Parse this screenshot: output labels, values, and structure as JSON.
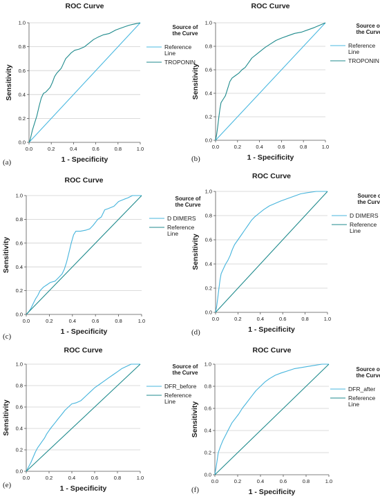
{
  "colors": {
    "reference": "#49b8e0",
    "curve_light": "#45b4dc",
    "curve_teal": "#1e8a8c",
    "grid": "#cfcfcf",
    "axis": "#555555"
  },
  "chart_data": [
    {
      "panel_letter": "(a)",
      "type": "line",
      "title": "ROC Curve",
      "xlabel": "1 - Specificity",
      "ylabel": "Sensitivity",
      "xlim": [
        0,
        1
      ],
      "ylim": [
        0,
        1
      ],
      "xticks": [
        "0.0",
        "0.2",
        "0.4",
        "0.6",
        "0.8",
        "1.0"
      ],
      "yticks": [
        "0.0",
        "0.2",
        "0.4",
        "0.6",
        "0.8",
        "1.0"
      ],
      "grid": "horizontal",
      "legend": {
        "title": "Source of the Curve",
        "placement": "right"
      },
      "series": [
        {
          "name": "Reference Line",
          "color": "#49b8e0",
          "points": [
            [
              0,
              0
            ],
            [
              1,
              1
            ]
          ]
        },
        {
          "name": "TROPONIN",
          "color": "#1e8a8c",
          "points": [
            [
              0,
              0
            ],
            [
              0.01,
              0.02
            ],
            [
              0.02,
              0.06
            ],
            [
              0.03,
              0.1
            ],
            [
              0.05,
              0.16
            ],
            [
              0.07,
              0.22
            ],
            [
              0.09,
              0.3
            ],
            [
              0.11,
              0.37
            ],
            [
              0.13,
              0.41
            ],
            [
              0.15,
              0.42
            ],
            [
              0.17,
              0.44
            ],
            [
              0.19,
              0.46
            ],
            [
              0.21,
              0.5
            ],
            [
              0.23,
              0.55
            ],
            [
              0.25,
              0.58
            ],
            [
              0.27,
              0.6
            ],
            [
              0.29,
              0.62
            ],
            [
              0.31,
              0.66
            ],
            [
              0.33,
              0.7
            ],
            [
              0.36,
              0.73
            ],
            [
              0.38,
              0.75
            ],
            [
              0.41,
              0.77
            ],
            [
              0.45,
              0.78
            ],
            [
              0.5,
              0.8
            ],
            [
              0.54,
              0.83
            ],
            [
              0.58,
              0.86
            ],
            [
              0.62,
              0.88
            ],
            [
              0.67,
              0.9
            ],
            [
              0.72,
              0.91
            ],
            [
              0.78,
              0.94
            ],
            [
              0.84,
              0.96
            ],
            [
              0.9,
              0.98
            ],
            [
              0.95,
              0.99
            ],
            [
              1,
              1
            ]
          ]
        }
      ]
    },
    {
      "panel_letter": "(b)",
      "type": "line",
      "title": "ROC Curve",
      "xlabel": "1 - Specificity",
      "ylabel": "Sensitivity",
      "xlim": [
        0,
        1
      ],
      "ylim": [
        0,
        1
      ],
      "xticks": [
        "0.0",
        "0.2",
        "0.4",
        "0.6",
        "0.8",
        "1.0"
      ],
      "yticks": [
        "0.0",
        "0.2",
        "0.4",
        "0.6",
        "0.8",
        "1.0"
      ],
      "grid": "horizontal",
      "legend": {
        "title": "Source of the Curve",
        "placement": "right"
      },
      "series": [
        {
          "name": "Reference Line",
          "color": "#49b8e0",
          "points": [
            [
              0,
              0
            ],
            [
              1,
              1
            ]
          ]
        },
        {
          "name": "TROPONIN",
          "color": "#1e8a8c",
          "points": [
            [
              0,
              0
            ],
            [
              0.01,
              0.05
            ],
            [
              0.02,
              0.12
            ],
            [
              0.03,
              0.2
            ],
            [
              0.04,
              0.27
            ],
            [
              0.05,
              0.32
            ],
            [
              0.07,
              0.35
            ],
            [
              0.09,
              0.38
            ],
            [
              0.11,
              0.44
            ],
            [
              0.13,
              0.5
            ],
            [
              0.15,
              0.53
            ],
            [
              0.18,
              0.55
            ],
            [
              0.21,
              0.57
            ],
            [
              0.24,
              0.6
            ],
            [
              0.27,
              0.62
            ],
            [
              0.3,
              0.66
            ],
            [
              0.33,
              0.7
            ],
            [
              0.37,
              0.73
            ],
            [
              0.41,
              0.76
            ],
            [
              0.45,
              0.79
            ],
            [
              0.5,
              0.82
            ],
            [
              0.55,
              0.85
            ],
            [
              0.6,
              0.87
            ],
            [
              0.66,
              0.89
            ],
            [
              0.72,
              0.91
            ],
            [
              0.78,
              0.92
            ],
            [
              0.84,
              0.94
            ],
            [
              0.9,
              0.96
            ],
            [
              0.95,
              0.98
            ],
            [
              1,
              1
            ]
          ]
        }
      ]
    },
    {
      "panel_letter": "(c)",
      "type": "line",
      "title": "ROC Curve",
      "xlabel": "1 - Specificity",
      "ylabel": "Sensitivity",
      "xlim": [
        0,
        1
      ],
      "ylim": [
        0,
        1
      ],
      "xticks": [
        "0.0",
        "0.2",
        "0.4",
        "0.6",
        "0.8",
        "1.0"
      ],
      "yticks": [
        "0.0",
        "0.2",
        "0.4",
        "0.6",
        "0.8",
        "1.0"
      ],
      "grid": "horizontal",
      "legend": {
        "title": "Source of the Curve",
        "placement": "right"
      },
      "series": [
        {
          "name": "D DIMERS",
          "color": "#45b4dc",
          "points": [
            [
              0,
              0
            ],
            [
              0.02,
              0.02
            ],
            [
              0.04,
              0.05
            ],
            [
              0.06,
              0.09
            ],
            [
              0.08,
              0.13
            ],
            [
              0.1,
              0.16
            ],
            [
              0.12,
              0.2
            ],
            [
              0.15,
              0.23
            ],
            [
              0.18,
              0.25
            ],
            [
              0.21,
              0.27
            ],
            [
              0.25,
              0.28
            ],
            [
              0.28,
              0.31
            ],
            [
              0.31,
              0.34
            ],
            [
              0.33,
              0.38
            ],
            [
              0.35,
              0.44
            ],
            [
              0.37,
              0.52
            ],
            [
              0.39,
              0.6
            ],
            [
              0.41,
              0.67
            ],
            [
              0.43,
              0.7
            ],
            [
              0.47,
              0.7
            ],
            [
              0.52,
              0.71
            ],
            [
              0.55,
              0.72
            ],
            [
              0.58,
              0.75
            ],
            [
              0.62,
              0.8
            ],
            [
              0.65,
              0.82
            ],
            [
              0.68,
              0.88
            ],
            [
              0.71,
              0.89
            ],
            [
              0.76,
              0.91
            ],
            [
              0.8,
              0.95
            ],
            [
              0.85,
              0.97
            ],
            [
              0.88,
              0.98
            ],
            [
              0.92,
              1
            ],
            [
              1,
              1
            ]
          ]
        },
        {
          "name": "Reference Line",
          "color": "#1e8a8c",
          "points": [
            [
              0,
              0
            ],
            [
              1,
              1
            ]
          ]
        }
      ]
    },
    {
      "panel_letter": "(d)",
      "type": "line",
      "title": "ROC Curve",
      "xlabel": "1 - Specificity",
      "ylabel": "Sensitivity",
      "xlim": [
        0,
        1
      ],
      "ylim": [
        0,
        1
      ],
      "xticks": [
        "0.0",
        "0.2",
        "0.4",
        "0.6",
        "0.8",
        "1.0"
      ],
      "yticks": [
        "0.0",
        "0.2",
        "0.4",
        "0.6",
        "0.8",
        "1.0"
      ],
      "grid": "horizontal",
      "legend": {
        "title": "Source of the Curve",
        "placement": "right"
      },
      "series": [
        {
          "name": "D DIMERS",
          "color": "#45b4dc",
          "points": [
            [
              0,
              0
            ],
            [
              0.01,
              0.05
            ],
            [
              0.02,
              0.12
            ],
            [
              0.03,
              0.2
            ],
            [
              0.04,
              0.27
            ],
            [
              0.05,
              0.32
            ],
            [
              0.07,
              0.36
            ],
            [
              0.09,
              0.4
            ],
            [
              0.11,
              0.43
            ],
            [
              0.13,
              0.47
            ],
            [
              0.15,
              0.52
            ],
            [
              0.17,
              0.56
            ],
            [
              0.2,
              0.6
            ],
            [
              0.23,
              0.64
            ],
            [
              0.26,
              0.68
            ],
            [
              0.29,
              0.72
            ],
            [
              0.32,
              0.76
            ],
            [
              0.35,
              0.79
            ],
            [
              0.39,
              0.82
            ],
            [
              0.43,
              0.85
            ],
            [
              0.48,
              0.88
            ],
            [
              0.53,
              0.9
            ],
            [
              0.58,
              0.92
            ],
            [
              0.64,
              0.94
            ],
            [
              0.7,
              0.96
            ],
            [
              0.76,
              0.98
            ],
            [
              0.82,
              0.99
            ],
            [
              0.9,
              1
            ],
            [
              1,
              1
            ]
          ]
        },
        {
          "name": "Reference Line",
          "color": "#1e8a8c",
          "points": [
            [
              0,
              0
            ],
            [
              1,
              1
            ]
          ]
        }
      ]
    },
    {
      "panel_letter": "(e)",
      "type": "line",
      "title": "ROC Curve",
      "xlabel": "1 - Specificity",
      "ylabel": "Sensitivity",
      "xlim": [
        0,
        1
      ],
      "ylim": [
        0,
        1
      ],
      "xticks": [
        "0.0",
        "0.2",
        "0.4",
        "0.6",
        "0.8",
        "1.0"
      ],
      "yticks": [
        "0.0",
        "0.2",
        "0.4",
        "0.6",
        "0.8",
        "1.0"
      ],
      "grid": "horizontal",
      "legend": {
        "title": "Source of the Curve",
        "placement": "right"
      },
      "series": [
        {
          "name": "DFR_before",
          "color": "#45b4dc",
          "points": [
            [
              0,
              0
            ],
            [
              0.02,
              0.04
            ],
            [
              0.04,
              0.08
            ],
            [
              0.06,
              0.13
            ],
            [
              0.08,
              0.18
            ],
            [
              0.1,
              0.22
            ],
            [
              0.12,
              0.25
            ],
            [
              0.14,
              0.28
            ],
            [
              0.16,
              0.31
            ],
            [
              0.18,
              0.35
            ],
            [
              0.2,
              0.38
            ],
            [
              0.22,
              0.41
            ],
            [
              0.25,
              0.45
            ],
            [
              0.28,
              0.49
            ],
            [
              0.31,
              0.53
            ],
            [
              0.34,
              0.57
            ],
            [
              0.37,
              0.6
            ],
            [
              0.4,
              0.63
            ],
            [
              0.44,
              0.64
            ],
            [
              0.48,
              0.66
            ],
            [
              0.52,
              0.7
            ],
            [
              0.56,
              0.74
            ],
            [
              0.6,
              0.78
            ],
            [
              0.64,
              0.81
            ],
            [
              0.68,
              0.84
            ],
            [
              0.72,
              0.87
            ],
            [
              0.76,
              0.9
            ],
            [
              0.8,
              0.93
            ],
            [
              0.84,
              0.96
            ],
            [
              0.88,
              0.98
            ],
            [
              0.92,
              1
            ],
            [
              1,
              1
            ]
          ]
        },
        {
          "name": "Reference Line",
          "color": "#1e8a8c",
          "points": [
            [
              0,
              0
            ],
            [
              1,
              1
            ]
          ]
        }
      ]
    },
    {
      "panel_letter": "(f)",
      "type": "line",
      "title": "ROC Curve",
      "xlabel": "1 - Specificity",
      "ylabel": "Sensitivity",
      "xlim": [
        0,
        1
      ],
      "ylim": [
        0,
        1
      ],
      "xticks": [
        "0.0",
        "0.2",
        "0.4",
        "0.6",
        "0.8",
        "1.0"
      ],
      "yticks": [
        "0.0",
        "0.2",
        "0.4",
        "0.6",
        "0.8",
        "1.0"
      ],
      "grid": "horizontal",
      "legend": {
        "title": "Source of the Curve",
        "placement": "right"
      },
      "series": [
        {
          "name": "DFR_after",
          "color": "#45b4dc",
          "points": [
            [
              0,
              0
            ],
            [
              0.01,
              0.06
            ],
            [
              0.02,
              0.13
            ],
            [
              0.03,
              0.2
            ],
            [
              0.05,
              0.26
            ],
            [
              0.07,
              0.31
            ],
            [
              0.09,
              0.35
            ],
            [
              0.11,
              0.39
            ],
            [
              0.13,
              0.43
            ],
            [
              0.15,
              0.47
            ],
            [
              0.18,
              0.51
            ],
            [
              0.21,
              0.55
            ],
            [
              0.24,
              0.6
            ],
            [
              0.27,
              0.64
            ],
            [
              0.3,
              0.68
            ],
            [
              0.33,
              0.72
            ],
            [
              0.36,
              0.76
            ],
            [
              0.4,
              0.8
            ],
            [
              0.44,
              0.84
            ],
            [
              0.48,
              0.87
            ],
            [
              0.53,
              0.9
            ],
            [
              0.58,
              0.92
            ],
            [
              0.64,
              0.94
            ],
            [
              0.7,
              0.96
            ],
            [
              0.76,
              0.97
            ],
            [
              0.82,
              0.98
            ],
            [
              0.88,
              0.99
            ],
            [
              0.94,
              1
            ],
            [
              1,
              1
            ]
          ]
        },
        {
          "name": "Reference Line",
          "color": "#1e8a8c",
          "points": [
            [
              0,
              0
            ],
            [
              1,
              1
            ]
          ]
        }
      ]
    }
  ]
}
